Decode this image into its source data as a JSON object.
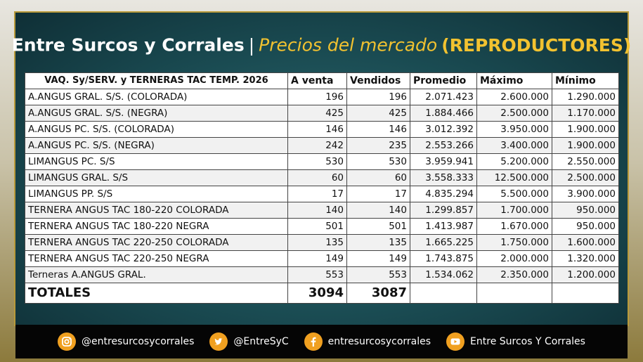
{
  "header": {
    "main": "Entre Surcos y Corrales",
    "separator": "|",
    "subtitle": "Precios del mercado",
    "tag": "(REPRODUCTORES)"
  },
  "table": {
    "columns": [
      "VAQ. Sy/SERV. y TERNERAS TAC TEMP. 2026",
      "A venta",
      "Vendidos",
      "Promedio",
      "Máximo",
      "Mínimo"
    ],
    "rows": [
      [
        "A.ANGUS GRAL. S/S. (COLORADA)",
        "196",
        "196",
        "2.071.423",
        "2.600.000",
        "1.290.000"
      ],
      [
        "A.ANGUS GRAL. S/S. (NEGRA)",
        "425",
        "425",
        "1.884.466",
        "2.500.000",
        "1.170.000"
      ],
      [
        "A.ANGUS PC. S/S. (COLORADA)",
        "146",
        "146",
        "3.012.392",
        "3.950.000",
        "1.900.000"
      ],
      [
        "A.ANGUS PC. S/S. (NEGRA)",
        "242",
        "235",
        "2.553.266",
        "3.400.000",
        "1.900.000"
      ],
      [
        "LIMANGUS PC. S/S",
        "530",
        "530",
        "3.959.941",
        "5.200.000",
        "2.550.000"
      ],
      [
        "LIMANGUS GRAL. S/S",
        "60",
        "60",
        "3.558.333",
        "12.500.000",
        "2.500.000"
      ],
      [
        "LIMANGUS PP. S/S",
        "17",
        "17",
        "4.835.294",
        "5.500.000",
        "3.900.000"
      ],
      [
        "TERNERA ANGUS TAC 180-220 COLORADA",
        "140",
        "140",
        "1.299.857",
        "1.700.000",
        "950.000"
      ],
      [
        "TERNERA ANGUS TAC 180-220 NEGRA",
        "501",
        "501",
        "1.413.987",
        "1.670.000",
        "950.000"
      ],
      [
        "TERNERA ANGUS TAC 220-250 COLORADA",
        "135",
        "135",
        "1.665.225",
        "1.750.000",
        "1.600.000"
      ],
      [
        "TERNERA ANGUS TAC 220-250 NEGRA",
        "149",
        "149",
        "1.743.875",
        "2.000.000",
        "1.320.000"
      ],
      [
        "Terneras A.ANGUS GRAL.",
        "553",
        "553",
        "1.534.062",
        "2.350.000",
        "1.200.000"
      ]
    ],
    "totals": [
      "TOTALES",
      "3094",
      "3087"
    ]
  },
  "footer": {
    "instagram": "@entresurcosycorrales",
    "twitter": "@EntreSyC",
    "facebook": "entresurcosycorrales",
    "youtube": "Entre Surcos Y Corrales"
  }
}
